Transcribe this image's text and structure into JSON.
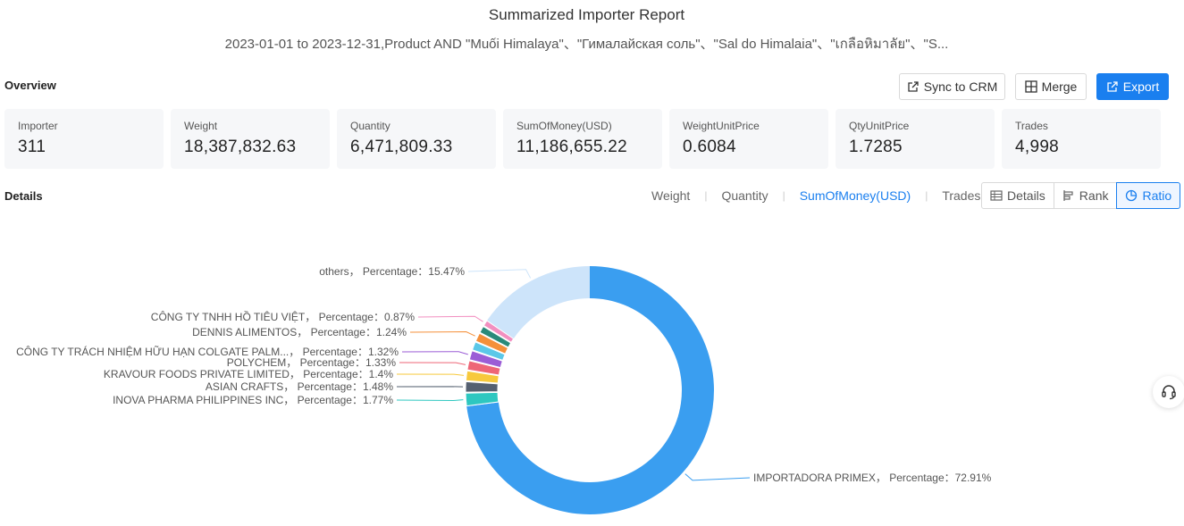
{
  "header": {
    "title": "Summarized Importer Report",
    "subtitle": "2023-01-01 to 2023-12-31,Product AND \"Muối Himalaya\"、\"Гималайская соль\"、\"Sal do Himalaia\"、\"เกลือหิมาลัย\"、\"S..."
  },
  "overview": {
    "label": "Overview",
    "buttons": {
      "sync": "Sync to CRM",
      "merge": "Merge",
      "export": "Export"
    },
    "cards": [
      {
        "label": "Importer",
        "value": "311"
      },
      {
        "label": "Weight",
        "value": "18,387,832.63"
      },
      {
        "label": "Quantity",
        "value": "6,471,809.33"
      },
      {
        "label": "SumOfMoney(USD)",
        "value": "11,186,655.22"
      },
      {
        "label": "WeightUnitPrice",
        "value": "0.6084"
      },
      {
        "label": "QtyUnitPrice",
        "value": "1.7285"
      },
      {
        "label": "Trades",
        "value": "4,998"
      }
    ]
  },
  "details": {
    "label": "Details",
    "metric_tabs": [
      "Weight",
      "Quantity",
      "SumOfMoney(USD)",
      "Trades"
    ],
    "active_metric": "SumOfMoney(USD)",
    "views": [
      "Details",
      "Rank",
      "Ratio"
    ],
    "active_view": "Ratio"
  },
  "chart_data": {
    "type": "pie",
    "variant": "donut",
    "label_template": "{name}, Percentage : {value}%",
    "slices": [
      {
        "name": "IMPORTADORA PRIMEX",
        "display": "IMPORTADORA PRIMEX，  Percentage：72.91%",
        "value": 72.91,
        "color": "#3a9ef0"
      },
      {
        "name": "INOVA PHARMA PHILIPPINES INC",
        "display": "INOVA PHARMA PHILIPPINES INC，  Percentage：1.77%",
        "value": 1.77,
        "color": "#2ec7c0"
      },
      {
        "name": "ASIAN CRAFTS",
        "display": "ASIAN CRAFTS，  Percentage：1.48%",
        "value": 1.48,
        "color": "#556070"
      },
      {
        "name": "KRAVOUR FOODS PRIVATE LIMITED",
        "display": "KRAVOUR FOODS PRIVATE LIMITED，  Percentage：1.4%",
        "value": 1.4,
        "color": "#f7c93d"
      },
      {
        "name": "POLYCHEM",
        "display": "POLYCHEM，  Percentage：1.33%",
        "value": 1.33,
        "color": "#ee6677"
      },
      {
        "name": "CÔNG TY TRÁCH NHIỆM HỮU HẠN COLGATE PALM...",
        "display": "CÔNG TY TRÁCH NHIỆM HỮU HẠN COLGATE PALM...，  Percentage：1.32%",
        "value": 1.32,
        "color": "#9b5dd6"
      },
      {
        "name": "",
        "display": "",
        "value": 1.2,
        "color": "#5bc8e8"
      },
      {
        "name": "DENNIS ALIMENTOS",
        "display": "DENNIS ALIMENTOS，  Percentage：1.24%",
        "value": 1.24,
        "color": "#f5903a"
      },
      {
        "name": "",
        "display": "",
        "value": 1.0,
        "color": "#2a8a7a"
      },
      {
        "name": "CÔNG TY TNHH HỒ TIÊU VIỆT",
        "display": "CÔNG TY TNHH HỒ TIÊU VIỆT，  Percentage：0.87%",
        "value": 0.87,
        "color": "#f28fc0"
      },
      {
        "name": "others",
        "display": "others，  Percentage：15.47%",
        "value": 15.47,
        "color": "#cde4fa"
      }
    ]
  }
}
